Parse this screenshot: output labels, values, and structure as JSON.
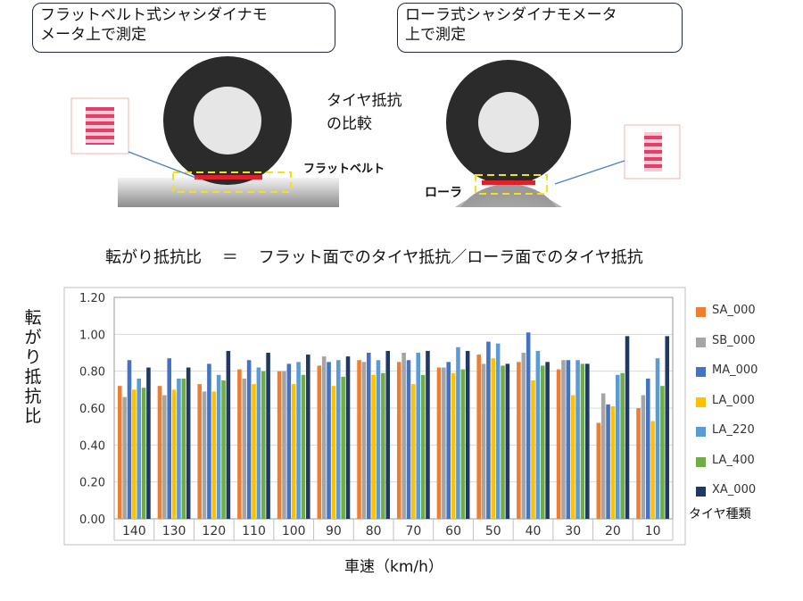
{
  "illustration": {
    "callout_left": "フラットベルト式シャシダイナモ\nメータ上で測定",
    "callout_right": "ローラ式シャシダイナモメータ\n上で測定",
    "compare_label": "タイヤ抵抗\nの比較",
    "flatbelt_label": "フラットベルト",
    "roller_label": "ローラ",
    "colors": {
      "tire": "#2b2b2b",
      "hub": "#e6e6e6",
      "contact": "#e0202a",
      "dash": "#f0e020",
      "arrow": "#4a7fc1",
      "pointer": "#1aa040"
    }
  },
  "formula": {
    "left": "転がり抵抗比",
    "eq": "＝",
    "right": "フラット面でのタイヤ抵抗／ローラ面でのタイヤ抵抗"
  },
  "chart_data": {
    "type": "bar",
    "ylabel": "転\nが\nり\n抵\n抗\n比",
    "xlabel": "車速（km/h）",
    "legend_title": "タイヤ種類",
    "legend_position": "right",
    "ylim": [
      0,
      1.2
    ],
    "yticks": [
      "0.00",
      "0.20",
      "0.40",
      "0.60",
      "0.80",
      "1.00",
      "1.20"
    ],
    "grid": true,
    "categories": [
      "140",
      "130",
      "120",
      "110",
      "100",
      "90",
      "80",
      "70",
      "60",
      "50",
      "40",
      "30",
      "20",
      "10"
    ],
    "series": [
      {
        "name": "SA_000",
        "color": "#ed7d31",
        "values": [
          0.72,
          0.72,
          0.73,
          0.81,
          0.8,
          0.83,
          0.86,
          0.85,
          0.82,
          0.89,
          0.85,
          0.81,
          0.52,
          0.6
        ]
      },
      {
        "name": "SB_000",
        "color": "#a5a5a5",
        "values": [
          0.66,
          0.67,
          0.69,
          0.76,
          0.8,
          0.88,
          0.85,
          0.9,
          0.82,
          0.84,
          0.9,
          0.86,
          0.68,
          0.67
        ]
      },
      {
        "name": "MA_000",
        "color": "#4472c4",
        "values": [
          0.86,
          0.87,
          0.84,
          0.86,
          0.84,
          0.85,
          0.9,
          0.86,
          0.85,
          0.96,
          1.01,
          0.86,
          0.62,
          0.76
        ]
      },
      {
        "name": "LA_000",
        "color": "#ffc000",
        "values": [
          0.7,
          0.7,
          0.69,
          0.73,
          0.73,
          0.72,
          0.78,
          0.73,
          0.79,
          0.87,
          0.75,
          0.67,
          0.61,
          0.53
        ]
      },
      {
        "name": "LA_220",
        "color": "#5b9bd5",
        "values": [
          0.76,
          0.76,
          0.78,
          0.82,
          0.85,
          0.86,
          0.86,
          0.9,
          0.93,
          0.95,
          0.91,
          0.86,
          0.78,
          0.87
        ]
      },
      {
        "name": "LA_400",
        "color": "#70ad47",
        "values": [
          0.71,
          0.76,
          0.75,
          0.8,
          0.78,
          0.77,
          0.79,
          0.78,
          0.81,
          0.83,
          0.83,
          0.84,
          0.79,
          0.72
        ]
      },
      {
        "name": "XA_000",
        "color": "#203864",
        "values": [
          0.82,
          0.82,
          0.91,
          0.9,
          0.89,
          0.88,
          0.91,
          0.91,
          0.91,
          0.84,
          0.85,
          0.84,
          0.99,
          0.99
        ]
      }
    ]
  }
}
